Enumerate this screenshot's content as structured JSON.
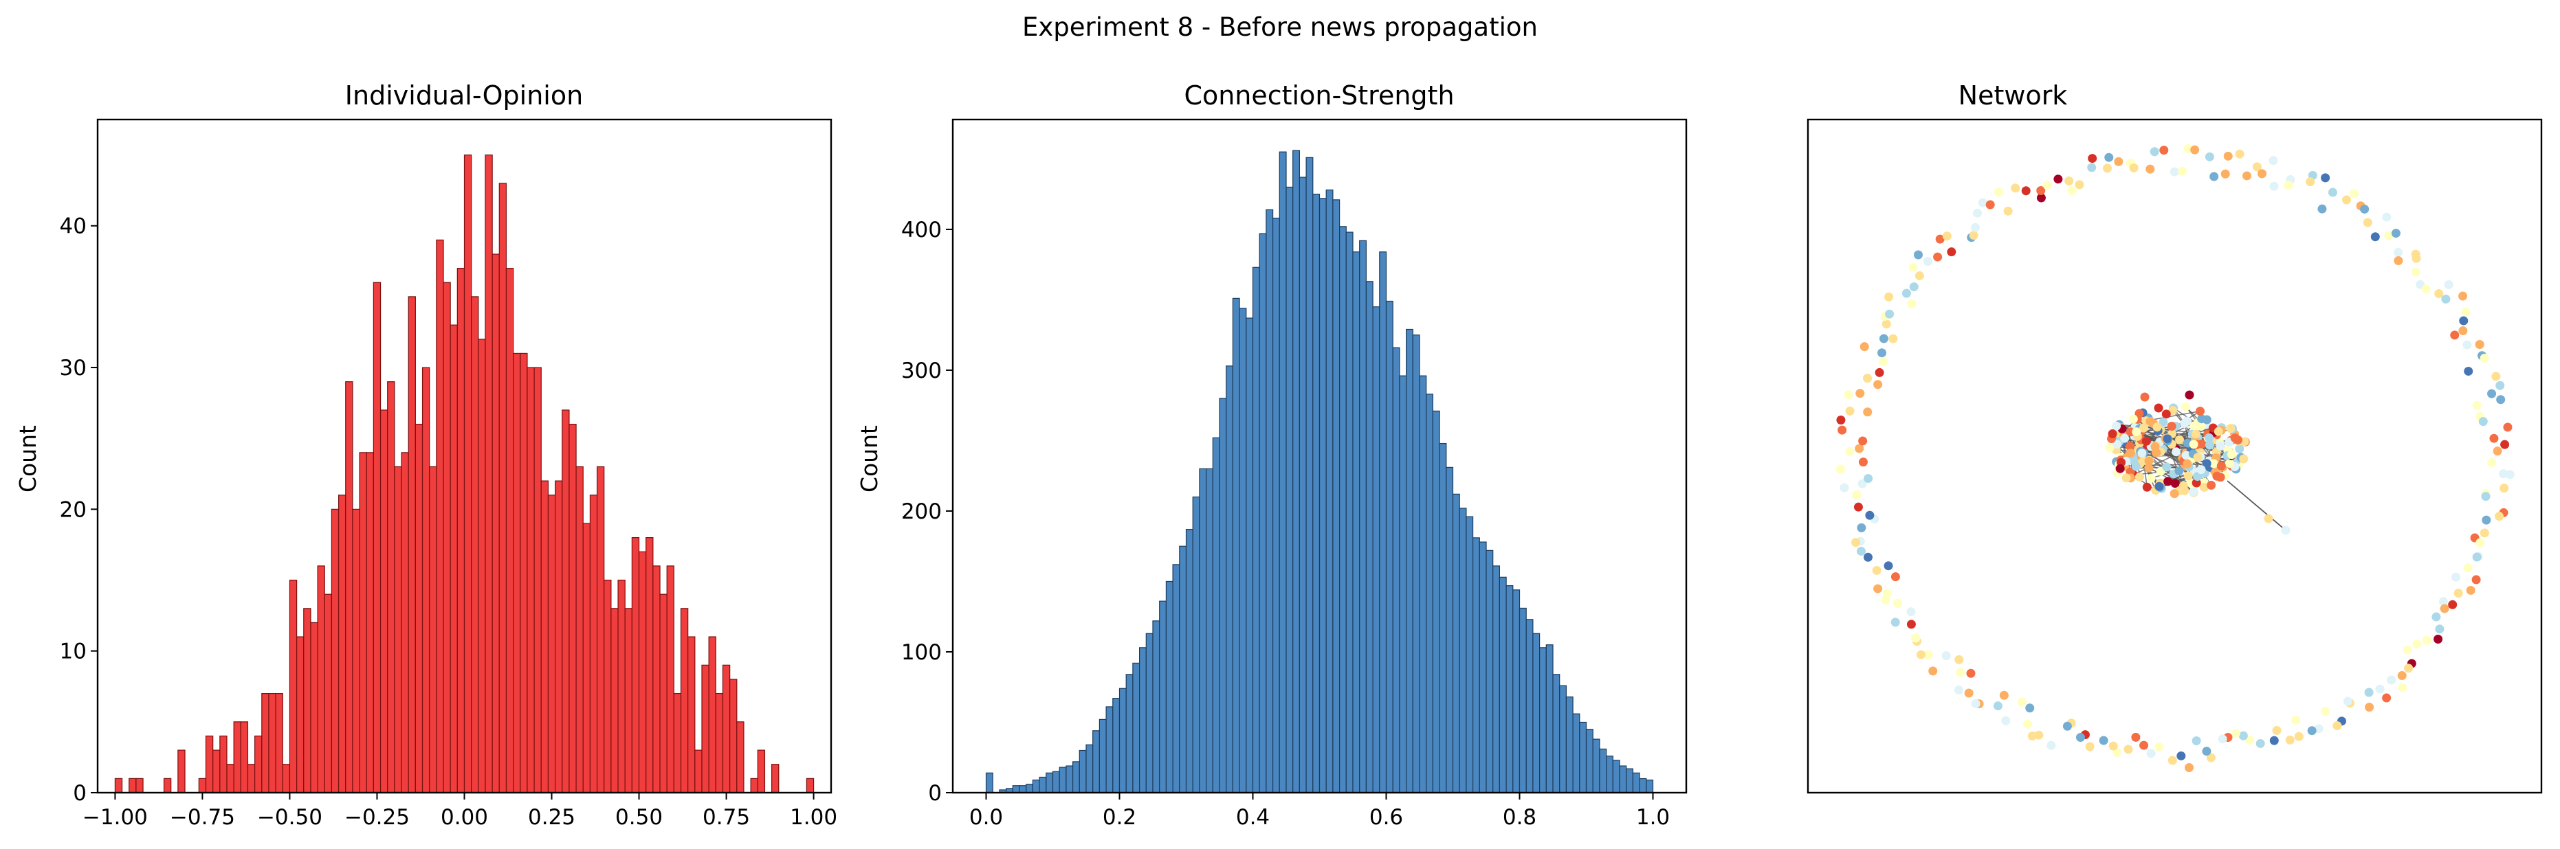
{
  "figure": {
    "suptitle": "Experiment 8 - Before news propagation"
  },
  "chart_data": [
    {
      "type": "histogram",
      "title": "Individual-Opinion",
      "xlabel": "",
      "ylabel": "Count",
      "xlim": [
        -1.05,
        1.05
      ],
      "ylim": [
        0,
        47.5
      ],
      "xticks": [
        -1.0,
        -0.75,
        -0.5,
        -0.25,
        0.0,
        0.25,
        0.5,
        0.75,
        1.0
      ],
      "xtick_labels": [
        "−1.00",
        "−0.75",
        "−0.50",
        "−0.25",
        "0.00",
        "0.25",
        "0.50",
        "0.75",
        "1.00"
      ],
      "yticks": [
        0,
        10,
        20,
        30,
        40
      ],
      "bin_range": [
        -1.0,
        1.0
      ],
      "bin_count": 100,
      "values": [
        1,
        0,
        1,
        1,
        0,
        0,
        0,
        1,
        0,
        3,
        0,
        0,
        1,
        4,
        3,
        4,
        2,
        5,
        5,
        2,
        4,
        7,
        7,
        7,
        2,
        15,
        11,
        13,
        12,
        16,
        14,
        20,
        21,
        29,
        20,
        24,
        24,
        36,
        27,
        29,
        23,
        24,
        35,
        26,
        30,
        23,
        39,
        36,
        33,
        37,
        45,
        35,
        32,
        45,
        38,
        43,
        37,
        31,
        31,
        30,
        30,
        22,
        21,
        22,
        27,
        26,
        23,
        19,
        21,
        23,
        15,
        13,
        15,
        13,
        18,
        17,
        18,
        16,
        14,
        16,
        7,
        13,
        11,
        3,
        9,
        11,
        7,
        9,
        8,
        5,
        0,
        1,
        3,
        0,
        2,
        0,
        0,
        0,
        0,
        1
      ],
      "color": "#f03d3d",
      "edge_color": "#7a1010"
    },
    {
      "type": "histogram",
      "title": "Connection-Strength",
      "xlabel": "",
      "ylabel": "Count",
      "xlim": [
        -0.05,
        1.05
      ],
      "ylim": [
        0,
        478
      ],
      "xticks": [
        0.0,
        0.2,
        0.4,
        0.6,
        0.8,
        1.0
      ],
      "xtick_labels": [
        "0.0",
        "0.2",
        "0.4",
        "0.6",
        "0.8",
        "1.0"
      ],
      "yticks": [
        0,
        100,
        200,
        300,
        400
      ],
      "bin_range": [
        0.0,
        1.0
      ],
      "bin_count": 100,
      "values": [
        14,
        0,
        2,
        3,
        5,
        5,
        6,
        9,
        11,
        14,
        15,
        18,
        19,
        22,
        30,
        34,
        44,
        52,
        61,
        67,
        74,
        84,
        92,
        103,
        113,
        122,
        136,
        150,
        162,
        175,
        187,
        210,
        230,
        230,
        252,
        280,
        303,
        351,
        344,
        337,
        373,
        397,
        414,
        408,
        455,
        430,
        456,
        437,
        451,
        425,
        422,
        428,
        421,
        402,
        398,
        384,
        392,
        363,
        345,
        384,
        349,
        316,
        296,
        329,
        325,
        296,
        283,
        271,
        248,
        231,
        212,
        202,
        196,
        181,
        178,
        172,
        161,
        153,
        147,
        144,
        131,
        123,
        113,
        103,
        105,
        84,
        76,
        68,
        56,
        50,
        45,
        38,
        31,
        26,
        23,
        19,
        17,
        14,
        10,
        9
      ],
      "color": "#4a86bf",
      "edge_color": "#1c3c5c"
    },
    {
      "type": "scatter",
      "title": "Network",
      "xlabel": "",
      "ylabel": "",
      "axis_ticks": false,
      "node_colors": [
        "#a50026",
        "#d73027",
        "#f46d43",
        "#fdae61",
        "#fee090",
        "#ffffbf",
        "#e0f3f8",
        "#abd9e9",
        "#74add1",
        "#4575b4"
      ],
      "ring_node_count": 240,
      "cluster_node_count": 220,
      "cluster_edge_count": 140
    }
  ]
}
